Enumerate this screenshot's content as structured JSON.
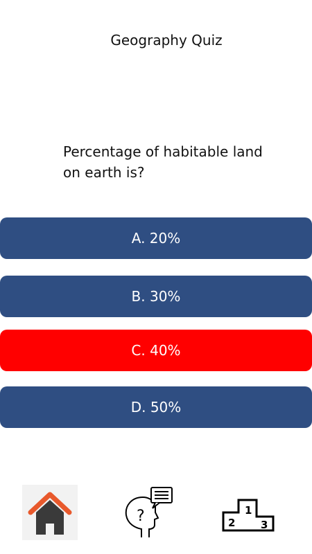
{
  "header": {
    "title": "Geography Quiz"
  },
  "question": {
    "text": "Percentage of habitable land on earth is?"
  },
  "answers": [
    {
      "label": "A. 20%"
    },
    {
      "label": "B. 30%"
    },
    {
      "label": "C. 40%"
    },
    {
      "label": "D. 50%"
    }
  ],
  "colors": {
    "answer_default": "#2f4e82",
    "answer_selected": "#ff0000",
    "home_roof": "#e8592c",
    "home_body": "#3a3a3a"
  },
  "nav": {
    "icons": [
      "home-icon",
      "head-question-icon",
      "podium-icon"
    ],
    "podium_labels": [
      "1",
      "2",
      "3"
    ]
  }
}
